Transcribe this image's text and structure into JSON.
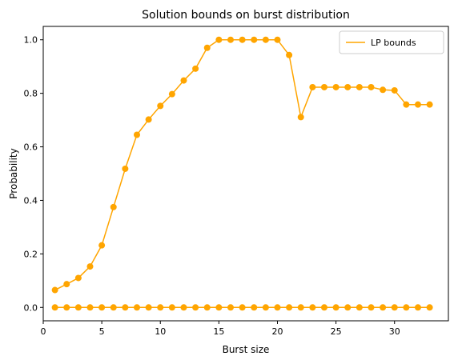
{
  "chart_data": {
    "type": "line",
    "title": "Solution bounds on burst distribution",
    "xlabel": "Burst size",
    "ylabel": "Probability",
    "xlim": [
      0,
      34.6
    ],
    "ylim": [
      -0.05,
      1.05
    ],
    "xticks": [
      0,
      5,
      10,
      15,
      20,
      25,
      30
    ],
    "yticks": [
      0.0,
      0.2,
      0.4,
      0.6,
      0.8,
      1.0
    ],
    "grid": false,
    "legend_position": "top-right",
    "color": "#ffa500",
    "x": [
      1,
      2,
      3,
      4,
      5,
      6,
      7,
      8,
      9,
      10,
      11,
      12,
      13,
      14,
      15,
      16,
      17,
      18,
      19,
      20,
      21,
      22,
      23,
      24,
      25,
      26,
      27,
      28,
      29,
      30,
      31,
      32,
      33
    ],
    "series": [
      {
        "name": "LP bounds",
        "role": "upper",
        "values": [
          0.065,
          0.087,
          0.11,
          0.153,
          0.232,
          0.375,
          0.518,
          0.645,
          0.702,
          0.753,
          0.797,
          0.848,
          0.892,
          0.97,
          1.0,
          1.0,
          1.0,
          1.0,
          1.0,
          1.0,
          0.943,
          0.711,
          0.823,
          0.823,
          0.823,
          0.823,
          0.823,
          0.823,
          0.813,
          0.811,
          0.758,
          0.758,
          0.758
        ]
      },
      {
        "role": "lower",
        "values": [
          0,
          0,
          0,
          0,
          0,
          0,
          0,
          0,
          0,
          0,
          0,
          0,
          0,
          0,
          0,
          0,
          0,
          0,
          0,
          0,
          0,
          0,
          0,
          0,
          0,
          0,
          0,
          0,
          0,
          0,
          0,
          0,
          0
        ]
      }
    ]
  }
}
